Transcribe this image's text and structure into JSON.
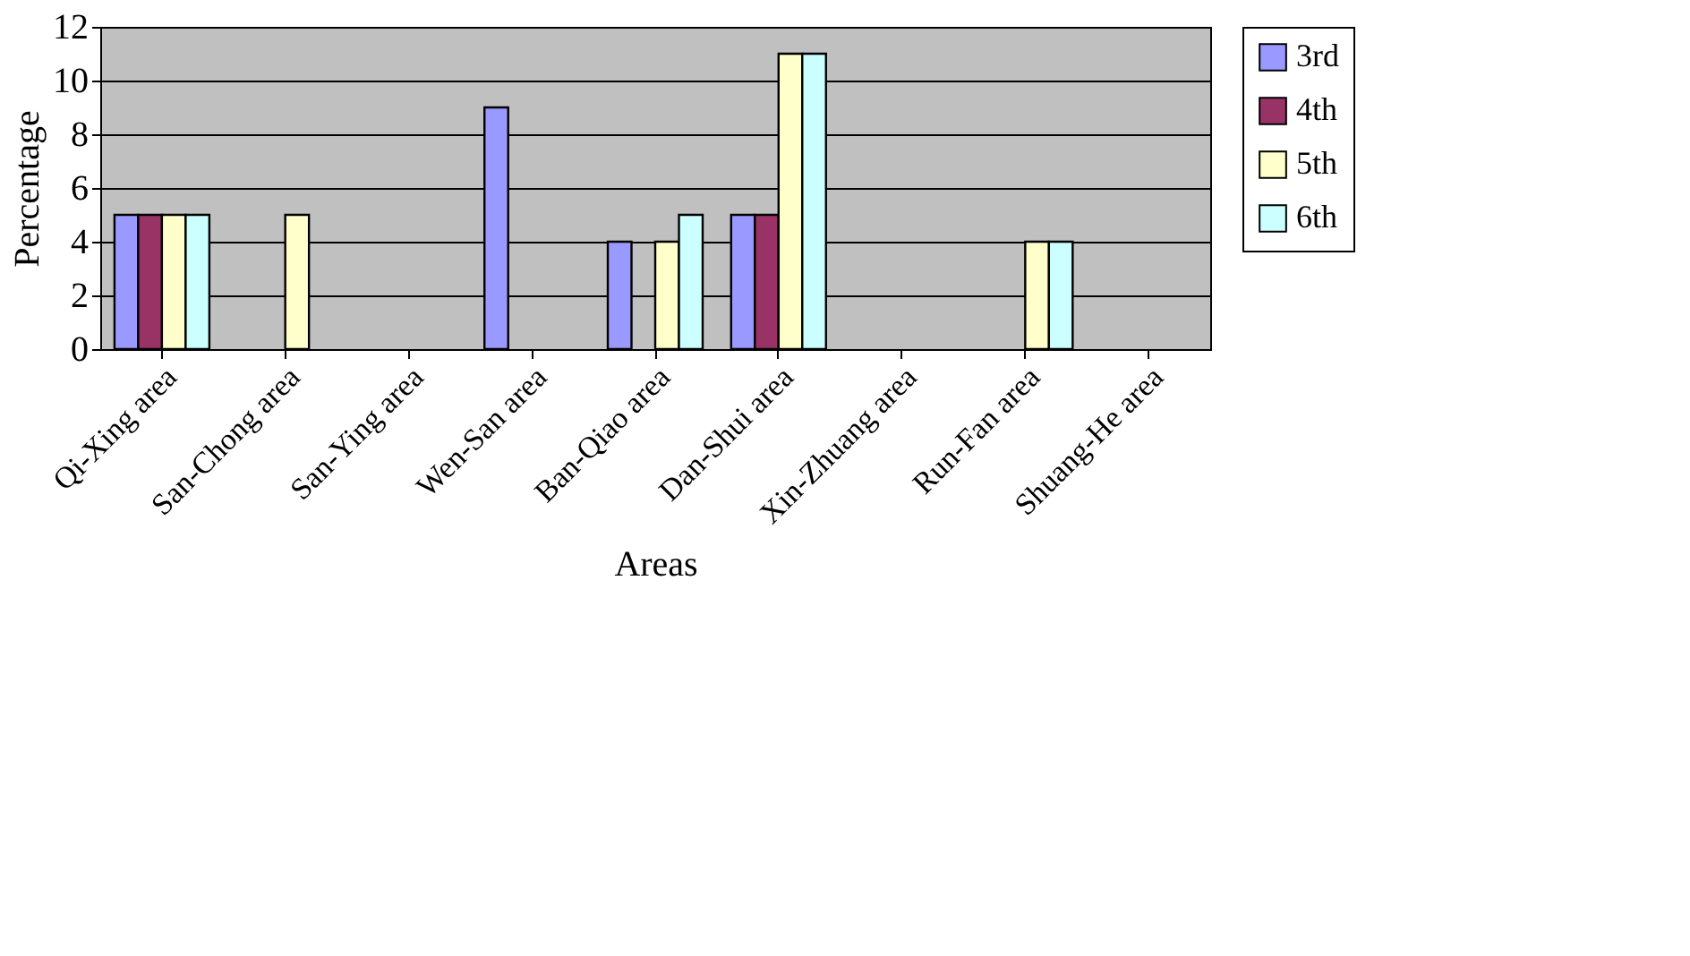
{
  "chart_data": {
    "type": "bar",
    "xlabel": "Areas",
    "ylabel": "Percentage",
    "categories": [
      "Qi-Xing area",
      "San-Chong area",
      "San-Ying area",
      "Wen-San area",
      "Ban-Qiao area",
      "Dan-Shui area",
      "Xin-Zhuang area",
      "Run-Fan area",
      "Shuang-He area"
    ],
    "series": [
      {
        "name": "3rd",
        "color": "#9999ff",
        "values": [
          5,
          null,
          null,
          9,
          4,
          5,
          null,
          null,
          null
        ]
      },
      {
        "name": "4th",
        "color": "#993366",
        "values": [
          5,
          null,
          null,
          null,
          null,
          5,
          null,
          null,
          null
        ]
      },
      {
        "name": "5th",
        "color": "#ffffcc",
        "values": [
          5,
          5,
          null,
          null,
          4,
          11,
          null,
          4,
          null
        ]
      },
      {
        "name": "6th",
        "color": "#ccffff",
        "values": [
          5,
          null,
          null,
          null,
          5,
          11,
          null,
          4,
          null
        ]
      }
    ],
    "ylim": [
      0,
      12
    ],
    "yticks": [
      0,
      2,
      4,
      6,
      8,
      10,
      12
    ],
    "grid": "y",
    "legend": "right"
  }
}
